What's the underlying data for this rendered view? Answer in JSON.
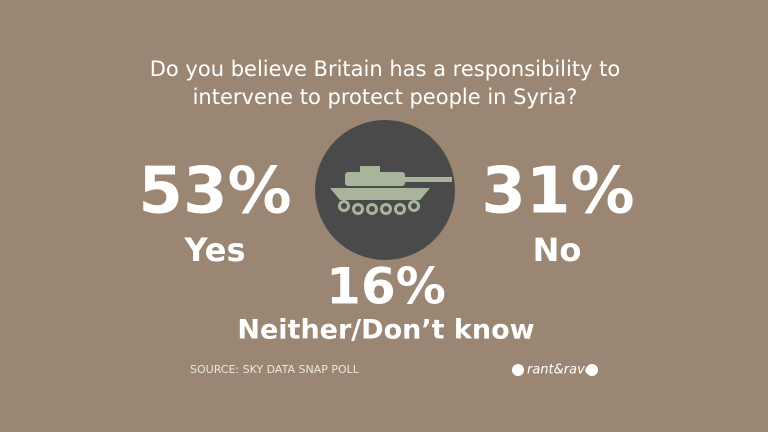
{
  "title": [
    "Do you believe Britain has a responsibility to",
    "intervene to protect people in Syria?"
  ],
  "results": [
    {
      "value": "53%",
      "label": "Yes"
    },
    {
      "value": "31%",
      "label": "No"
    },
    {
      "value": "16%",
      "label": "Neither/Don’t know"
    }
  ],
  "source": "SOURCE: SKY DATA SNAP POLL",
  "logo": "rant&rave"
}
